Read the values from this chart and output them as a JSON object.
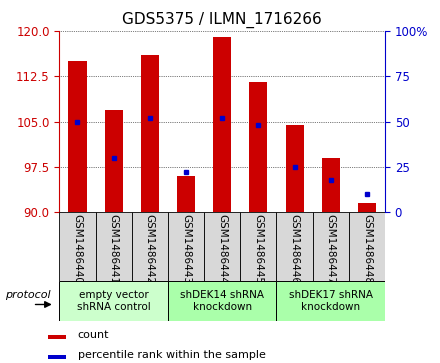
{
  "title": "GDS5375 / ILMN_1716266",
  "samples": [
    "GSM1486440",
    "GSM1486441",
    "GSM1486442",
    "GSM1486443",
    "GSM1486444",
    "GSM1486445",
    "GSM1486446",
    "GSM1486447",
    "GSM1486448"
  ],
  "bar_values": [
    115.0,
    107.0,
    116.0,
    96.0,
    119.0,
    111.5,
    104.5,
    99.0,
    91.5
  ],
  "percentile_values": [
    50,
    30,
    52,
    22,
    52,
    48,
    25,
    18,
    10
  ],
  "bar_color": "#cc0000",
  "percentile_color": "#0000cc",
  "ylim_left": [
    90,
    120
  ],
  "ylim_right": [
    0,
    100
  ],
  "yticks_left": [
    90,
    97.5,
    105,
    112.5,
    120
  ],
  "yticks_right": [
    0,
    25,
    50,
    75,
    100
  ],
  "groups": [
    {
      "label": "empty vector\nshRNA control",
      "start": 0,
      "end": 3,
      "color": "#ccffcc"
    },
    {
      "label": "shDEK14 shRNA\nknockdown",
      "start": 3,
      "end": 6,
      "color": "#aaffaa"
    },
    {
      "label": "shDEK17 shRNA\nknockdown",
      "start": 6,
      "end": 9,
      "color": "#aaffaa"
    }
  ],
  "protocol_label": "protocol",
  "legend_count_label": "count",
  "legend_percentile_label": "percentile rank within the sample",
  "bar_width": 0.5,
  "title_fontsize": 11,
  "tick_fontsize": 8.5,
  "label_fontsize": 7.5
}
